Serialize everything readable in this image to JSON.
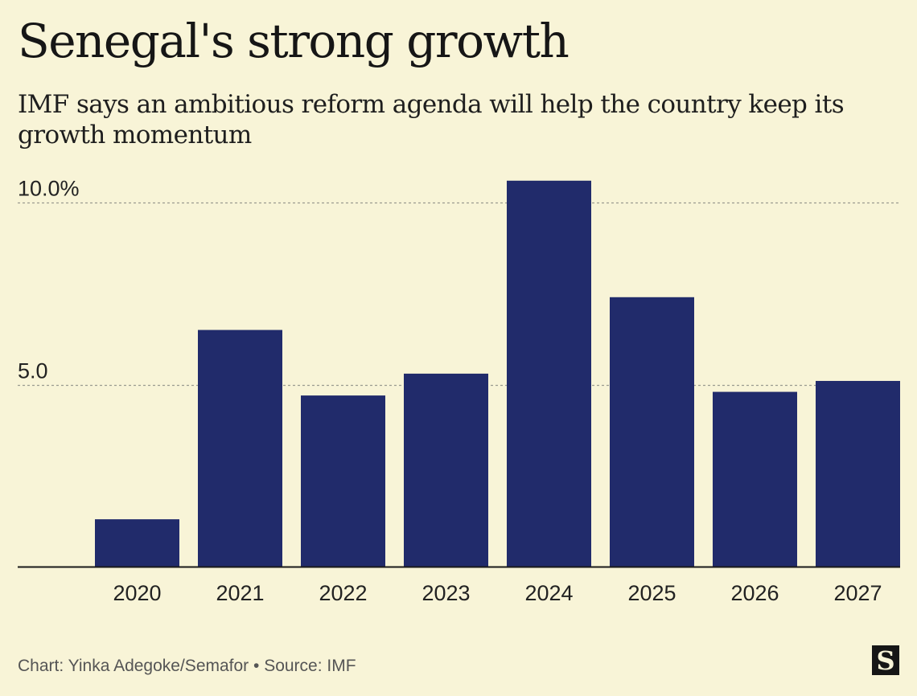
{
  "title": "Senegal's strong growth",
  "subtitle": "IMF says an ambitious reform agenda will help the country keep its growth momentum",
  "footer": "Chart: Yinka Adegoke/Semafor • Source: IMF",
  "logo_text": "S",
  "colors": {
    "background": "#f8f4d7",
    "bar": "#212b6b",
    "gridline": "#9a9a90",
    "axis": "#1a1a1a"
  },
  "chart_data": {
    "type": "bar",
    "categories": [
      "2020",
      "2021",
      "2022",
      "2023",
      "2024",
      "2025",
      "2026",
      "2027"
    ],
    "values": [
      1.3,
      6.5,
      4.7,
      5.3,
      10.6,
      7.4,
      4.8,
      5.1
    ],
    "y_tick_labels": [
      "5.0",
      "10.0%"
    ],
    "y_tick_values": [
      5,
      10
    ],
    "ylim": [
      0,
      10.6
    ],
    "grid": "horizontal dashed",
    "xlabel": "",
    "ylabel": ""
  }
}
